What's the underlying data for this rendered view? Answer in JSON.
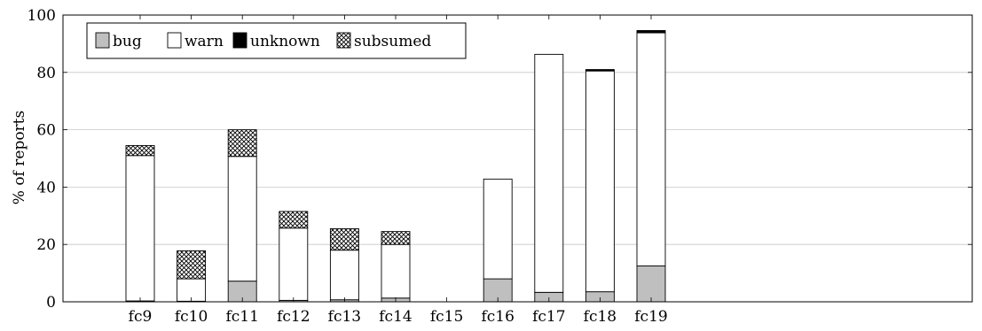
{
  "chart_data": {
    "type": "bar",
    "stacked": true,
    "title": "",
    "xlabel": "",
    "ylabel": "% of reports",
    "ylim": [
      0,
      100
    ],
    "yticks": [
      0,
      20,
      40,
      60,
      80,
      100
    ],
    "grid": "horizontal",
    "legend_placement": "top-left",
    "categories": [
      "fc9",
      "fc10",
      "fc11",
      "fc12",
      "fc13",
      "fc14",
      "fc15",
      "fc16",
      "fc17",
      "fc18",
      "fc19"
    ],
    "series": [
      {
        "name": "bug",
        "fill": "#bfbfbf",
        "pattern": "none",
        "values": [
          0.3,
          0.2,
          7.2,
          0.5,
          0.7,
          1.3,
          0.0,
          8.0,
          3.3,
          3.5,
          12.5
        ]
      },
      {
        "name": "warn",
        "fill": "#ffffff",
        "pattern": "none",
        "values": [
          50.7,
          7.8,
          43.5,
          25.2,
          17.3,
          18.7,
          0.0,
          34.8,
          83.0,
          77.0,
          81.3
        ]
      },
      {
        "name": "unknown",
        "fill": "#000000",
        "pattern": "none",
        "values": [
          0.0,
          0.0,
          0.0,
          0.0,
          0.0,
          0.0,
          0.0,
          0.0,
          0.0,
          0.5,
          0.8
        ]
      },
      {
        "name": "subsumed",
        "fill": "#ffffff",
        "pattern": "crosshatch",
        "values": [
          3.5,
          9.8,
          9.3,
          5.8,
          7.5,
          4.5,
          0.0,
          0.0,
          0.0,
          0.0,
          0.0
        ]
      }
    ]
  }
}
